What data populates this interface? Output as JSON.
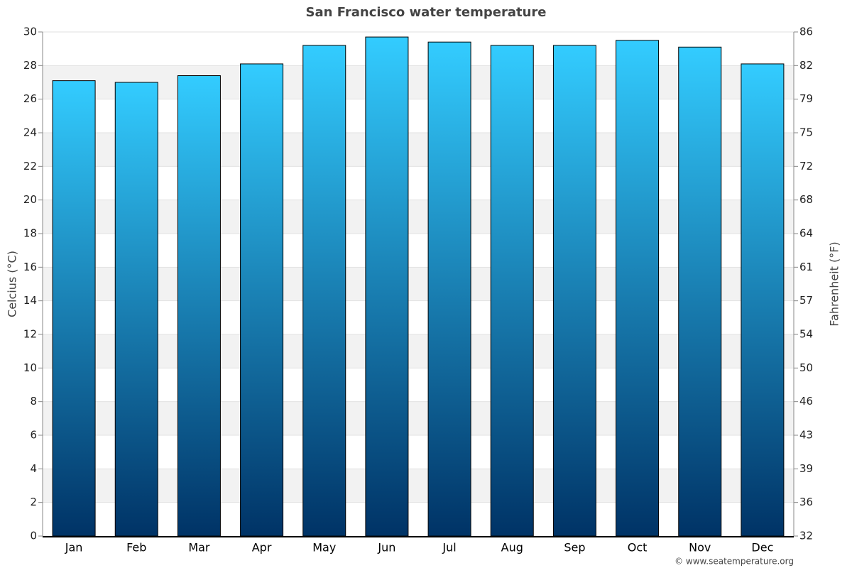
{
  "chart_data": {
    "type": "bar",
    "title": "San Francisco water temperature",
    "categories": [
      "Jan",
      "Feb",
      "Mar",
      "Apr",
      "May",
      "Jun",
      "Jul",
      "Aug",
      "Sep",
      "Oct",
      "Nov",
      "Dec"
    ],
    "values": [
      27.1,
      27.0,
      27.4,
      28.1,
      29.2,
      29.7,
      29.4,
      29.2,
      29.2,
      29.5,
      29.1,
      28.1
    ],
    "color": [
      "#33ccff",
      "#003366"
    ],
    "ylabel": "Celcius (°C)",
    "y2label": "Fahrenheit (°F)",
    "ylim": [
      0,
      30
    ],
    "yticks": [
      0,
      2,
      4,
      6,
      8,
      10,
      12,
      14,
      16,
      18,
      20,
      22,
      24,
      26,
      28,
      30
    ],
    "y2lim": [
      32,
      86
    ],
    "y2ticks": [
      32,
      {
        "value": 35.6,
        "label": "36"
      },
      {
        "value": 39.2,
        "label": "39"
      },
      {
        "value": 42.8,
        "label": "43"
      },
      {
        "value": 46.4,
        "label": "46"
      },
      50,
      {
        "value": 53.6,
        "label": "54"
      },
      {
        "value": 57.2,
        "label": "57"
      },
      {
        "value": 60.8,
        "label": "61"
      },
      {
        "value": 64.4,
        "label": "64"
      },
      68,
      {
        "value": 71.6,
        "label": "72"
      },
      {
        "value": 75.2,
        "label": "75"
      },
      {
        "value": 78.8,
        "label": "79"
      },
      {
        "value": 82.4,
        "label": "82"
      },
      86
    ],
    "grid": true,
    "source": "© www.seatemperature.org"
  }
}
